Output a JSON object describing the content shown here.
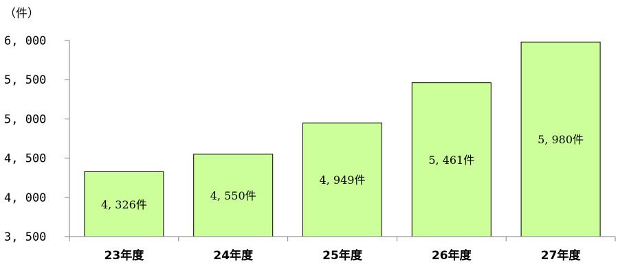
{
  "chart_data": {
    "type": "bar",
    "unit_label": "（件）",
    "categories": [
      "23年度",
      "24年度",
      "25年度",
      "26年度",
      "27年度"
    ],
    "values": [
      4326,
      4550,
      4949,
      5461,
      5980
    ],
    "data_labels": [
      "4, 326件",
      "4, 550件",
      "4, 949件",
      "5, 461件",
      "5, 980件"
    ],
    "y_ticks": [
      3500,
      4000,
      4500,
      5000,
      5500,
      6000
    ],
    "y_tick_labels": [
      "3, 500",
      "4, 000",
      "4, 500",
      "5, 000",
      "5, 500",
      "6, 000"
    ],
    "ylim": [
      3500,
      6000
    ],
    "grid": false,
    "colors": {
      "bar_fill": "#ccff99",
      "bar_stroke": "#000000",
      "axis": "#7f7f7f"
    }
  }
}
